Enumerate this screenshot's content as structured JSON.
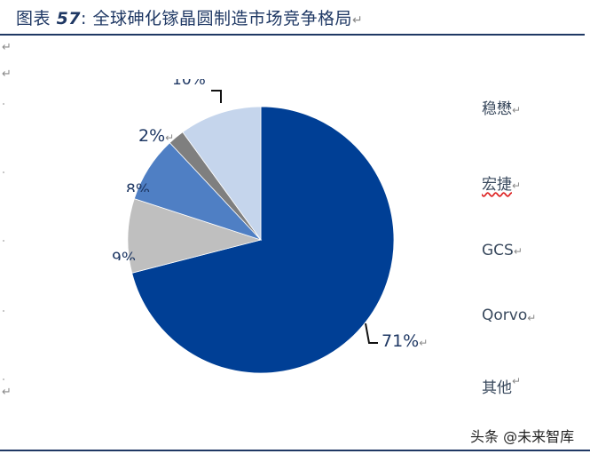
{
  "title": {
    "prefix": "图表",
    "number": "57",
    "colon": ":",
    "text": "全球砷化镓晶圆制造市场竞争格局",
    "return_mark": "↵"
  },
  "return_mark": "↵",
  "labels": {
    "top_clipped": "10%",
    "p2": "2%",
    "p8": "8%",
    "p9": "9%",
    "p71": "71%"
  },
  "legend": {
    "items": [
      {
        "label": "稳懋"
      },
      {
        "label": "宏捷"
      },
      {
        "label": "GCS"
      },
      {
        "label": "Qorvo"
      },
      {
        "label": "其他"
      }
    ]
  },
  "watermark": "头条 @未来智库",
  "chart_data": {
    "type": "pie",
    "title": "全球砷化镓晶圆制造市场竞争格局",
    "start_angle": "12 o'clock, clockwise",
    "slices": [
      {
        "name": "稳懋",
        "value": 71,
        "color": "#003f95"
      },
      {
        "name": "宏捷",
        "value": 9,
        "color": "#bfbfbf"
      },
      {
        "name": "GCS",
        "value": 8,
        "color": "#4f7fc4"
      },
      {
        "name": "Qorvo",
        "value": 2,
        "color": "#7f7f7f"
      },
      {
        "name": "其他",
        "value": 10,
        "color": "#c5d5ec"
      }
    ],
    "unit": "%",
    "legend_position": "right"
  }
}
